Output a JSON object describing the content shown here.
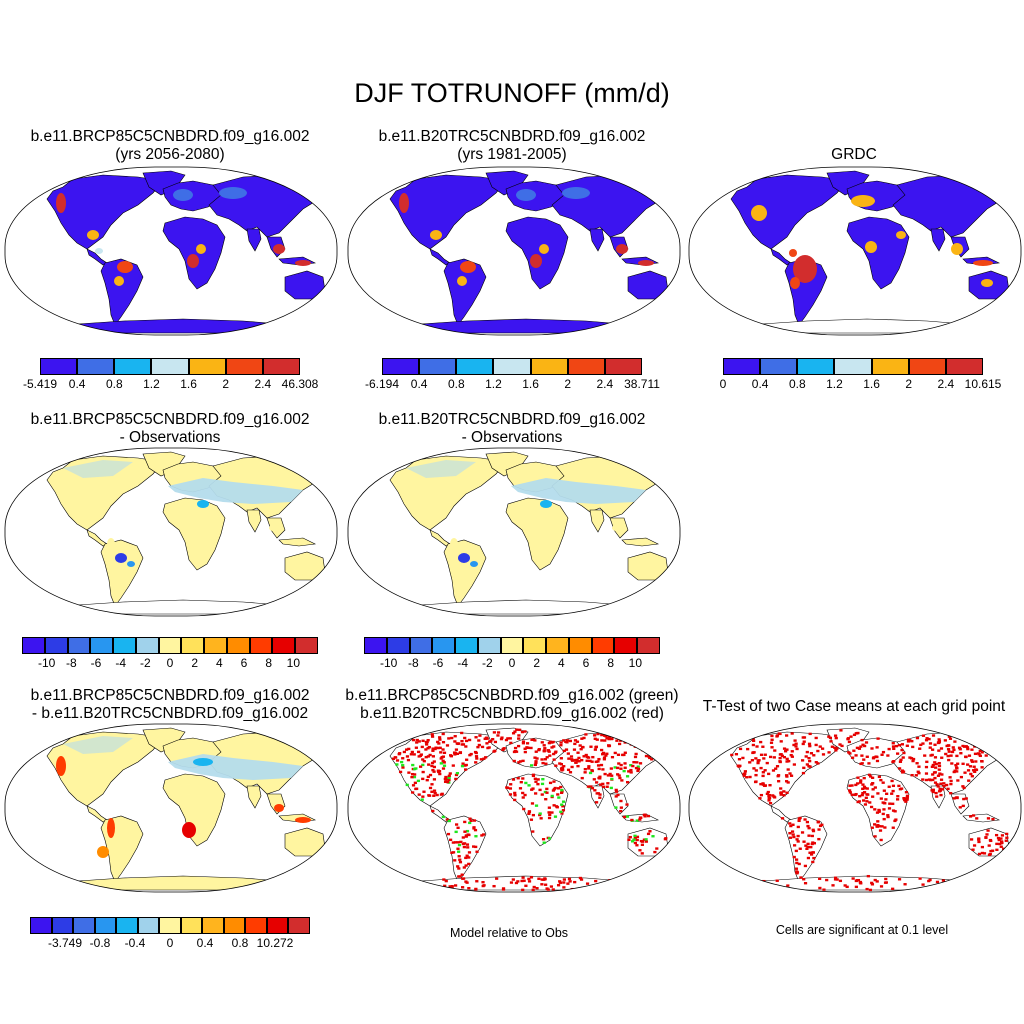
{
  "title": "DJF TOTRUNOFF (mm/d)",
  "colors": {
    "abs_scale": [
      "#3c14f0",
      "#3f6ee6",
      "#19b4f0",
      "#c8e6f0",
      "#fab414",
      "#f04614",
      "#d22d2d"
    ],
    "diff_scale": [
      "#3c14f0",
      "#2d3ce6",
      "#3f6ee6",
      "#2896f0",
      "#19b4f0",
      "#a0d2eb",
      "#fff5a0",
      "#ffe15a",
      "#ffb41e",
      "#ff8c00",
      "#ff3c00",
      "#e60000",
      "#d22d2d"
    ],
    "diff_scale_c": [
      "#3c14f0",
      "#2d3ce6",
      "#3f6ee6",
      "#2896f0",
      "#19b4f0",
      "#a0d2eb",
      "#fff5a0",
      "#ffe15a",
      "#ffb41e",
      "#ff8c00",
      "#ff3c00",
      "#e60000",
      "#d22d2d"
    ],
    "land_blue": "#3c14f0",
    "sig_red": "#e60000",
    "sig_green": "#1ee61e",
    "obs_yellow": "#fff5a0",
    "obs_lightblue": "#b4dcec"
  },
  "panels": [
    {
      "id": "p1",
      "line1": "b.e11.BRCP85C5CNBDRD.f09_g16.002",
      "line2": "(yrs 2056-2080)",
      "fill": "abs"
    },
    {
      "id": "p2",
      "line1": "b.e11.B20TRC5CNBDRD.f09_g16.002",
      "line2": "(yrs 1981-2005)",
      "fill": "abs"
    },
    {
      "id": "p3",
      "line1": "",
      "line2": "GRDC",
      "fill": "abs"
    },
    {
      "id": "p4",
      "line1": "b.e11.BRCP85C5CNBDRD.f09_g16.002",
      "line2": "- Observations",
      "fill": "obs"
    },
    {
      "id": "p5",
      "line1": "b.e11.B20TRC5CNBDRD.f09_g16.002",
      "line2": "- Observations",
      "fill": "obs"
    },
    {
      "id": "p7",
      "line1": "b.e11.BRCP85C5CNBDRD.f09_g16.002",
      "line2": "- b.e11.B20TRC5CNBDRD.f09_g16.002",
      "fill": "obs"
    },
    {
      "id": "p8",
      "line1": "b.e11.BRCP85C5CNBDRD.f09_g16.002 (green)",
      "line2": "b.e11.B20TRC5CNBDRD.f09_g16.002 (red)",
      "fill": "sig"
    },
    {
      "id": "p9",
      "line1": "T-Test of two Case means at each grid point",
      "line2": "",
      "fill": "ttest"
    }
  ],
  "colorbars": [
    {
      "id": "cb1",
      "labels": [
        "-5.419",
        "0.4",
        "0.8",
        "1.2",
        "1.6",
        "2",
        "2.4",
        "46.308"
      ]
    },
    {
      "id": "cb2",
      "labels": [
        "-6.194",
        "0.4",
        "0.8",
        "1.2",
        "1.6",
        "2",
        "2.4",
        "38.711"
      ]
    },
    {
      "id": "cb3",
      "labels": [
        "0",
        "0.4",
        "0.8",
        "1.2",
        "1.6",
        "2",
        "2.4",
        "10.615"
      ]
    },
    {
      "id": "cb4",
      "labels": [
        "-10",
        "-8",
        "-6",
        "-4",
        "-2",
        "0",
        "2",
        "4",
        "6",
        "8",
        "10"
      ]
    },
    {
      "id": "cb5",
      "labels": [
        "-10",
        "-8",
        "-6",
        "-4",
        "-2",
        "0",
        "2",
        "4",
        "6",
        "8",
        "10"
      ]
    },
    {
      "id": "cb7",
      "labels": [
        "-3.749",
        "-0.8",
        "-0.4",
        "0",
        "0.4",
        "0.8",
        "10.272"
      ]
    }
  ],
  "captions": {
    "p8": "Model relative to Obs",
    "p9": "Cells are significant at 0.1 level"
  }
}
